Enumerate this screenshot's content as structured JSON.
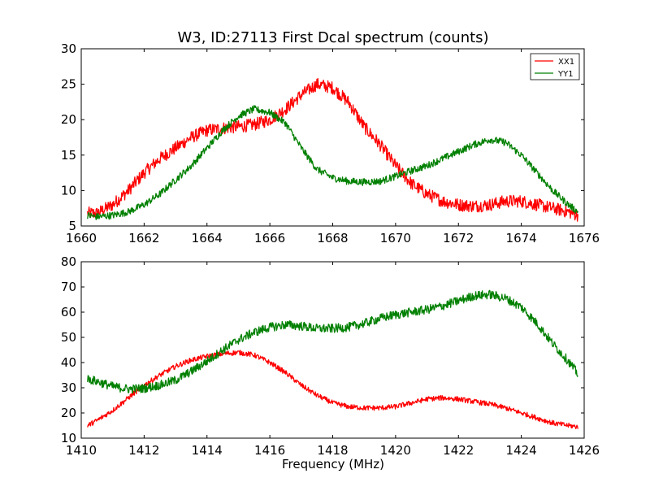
{
  "title": "W3, ID:27113 First Dcal spectrum (counts)",
  "xlabel": "Frequency (MHz)",
  "legend": {
    "placement": "top-right",
    "entries": [
      {
        "label": "XX1",
        "color": "#ff0000"
      },
      {
        "label": "YY1",
        "color": "#008000"
      }
    ]
  },
  "chart_data": [
    {
      "type": "line",
      "title": "W3, ID:27113 First Dcal spectrum (counts)",
      "xlabel": "",
      "ylabel": "",
      "xlim": [
        1660,
        1676
      ],
      "ylim": [
        5,
        30
      ],
      "xticks": [
        1660,
        1662,
        1664,
        1666,
        1668,
        1670,
        1672,
        1674,
        1676
      ],
      "yticks": [
        5,
        10,
        15,
        20,
        25,
        30
      ],
      "legend": "top-right",
      "series": [
        {
          "name": "XX1",
          "color": "#ff0000",
          "noise": 0.9,
          "x": [
            1660.2,
            1660.5,
            1661.0,
            1661.5,
            1662.0,
            1662.5,
            1663.0,
            1663.5,
            1664.0,
            1664.5,
            1665.0,
            1665.5,
            1666.0,
            1666.5,
            1667.0,
            1667.5,
            1668.0,
            1668.5,
            1669.0,
            1669.5,
            1670.0,
            1670.5,
            1671.0,
            1671.5,
            1672.0,
            1672.5,
            1673.0,
            1673.5,
            1674.0,
            1674.5,
            1675.0,
            1675.5,
            1675.8
          ],
          "y": [
            6.8,
            6.8,
            8.0,
            10.0,
            12.5,
            14.5,
            16.0,
            17.5,
            18.5,
            18.8,
            19.0,
            19.3,
            20.0,
            21.5,
            23.5,
            25.0,
            24.5,
            22.5,
            19.0,
            16.5,
            13.5,
            11.0,
            9.5,
            8.5,
            8.0,
            7.8,
            8.0,
            8.5,
            8.5,
            8.0,
            7.5,
            7.0,
            6.5
          ]
        },
        {
          "name": "YY1",
          "color": "#008000",
          "noise": 0.5,
          "x": [
            1660.2,
            1660.5,
            1661.0,
            1661.5,
            1662.0,
            1662.5,
            1663.0,
            1663.5,
            1664.0,
            1664.5,
            1665.0,
            1665.5,
            1666.0,
            1666.5,
            1667.0,
            1667.5,
            1668.0,
            1668.5,
            1669.0,
            1669.5,
            1670.0,
            1670.5,
            1671.0,
            1671.5,
            1672.0,
            1672.5,
            1673.0,
            1673.5,
            1674.0,
            1674.5,
            1675.0,
            1675.5,
            1675.8
          ],
          "y": [
            6.5,
            6.3,
            6.5,
            7.0,
            8.0,
            9.5,
            11.5,
            13.5,
            16.0,
            18.5,
            20.5,
            21.5,
            21.0,
            19.5,
            16.0,
            13.0,
            11.8,
            11.3,
            11.2,
            11.3,
            12.0,
            12.8,
            13.5,
            14.5,
            15.5,
            16.5,
            17.2,
            16.8,
            15.0,
            12.5,
            10.0,
            8.0,
            7.0
          ]
        }
      ]
    },
    {
      "type": "line",
      "title": "",
      "xlabel": "Frequency (MHz)",
      "ylabel": "",
      "xlim": [
        1410,
        1426
      ],
      "ylim": [
        10,
        80
      ],
      "xticks": [
        1410,
        1412,
        1414,
        1416,
        1418,
        1420,
        1422,
        1424,
        1426
      ],
      "yticks": [
        10,
        20,
        30,
        40,
        50,
        60,
        70,
        80
      ],
      "series": [
        {
          "name": "XX1",
          "color": "#ff0000",
          "noise": 1.0,
          "x": [
            1410.2,
            1410.5,
            1411.0,
            1411.5,
            1412.0,
            1412.5,
            1413.0,
            1413.5,
            1414.0,
            1414.5,
            1415.0,
            1415.5,
            1416.0,
            1416.5,
            1417.0,
            1417.5,
            1418.0,
            1418.5,
            1419.0,
            1419.5,
            1420.0,
            1420.5,
            1421.0,
            1421.5,
            1422.0,
            1422.5,
            1423.0,
            1423.5,
            1424.0,
            1424.5,
            1425.0,
            1425.5,
            1425.8
          ],
          "y": [
            15.0,
            17.0,
            21.0,
            26.0,
            31.0,
            35.0,
            38.5,
            41.0,
            42.5,
            43.5,
            44.0,
            43.0,
            40.0,
            36.0,
            31.0,
            27.0,
            24.0,
            22.5,
            22.0,
            22.0,
            22.5,
            24.0,
            25.5,
            26.0,
            25.5,
            24.5,
            23.5,
            22.0,
            20.0,
            18.0,
            16.0,
            15.0,
            14.5
          ]
        },
        {
          "name": "YY1",
          "color": "#008000",
          "noise": 1.8,
          "x": [
            1410.2,
            1410.5,
            1411.0,
            1411.5,
            1412.0,
            1412.5,
            1413.0,
            1413.5,
            1414.0,
            1414.5,
            1415.0,
            1415.5,
            1416.0,
            1416.5,
            1417.0,
            1417.5,
            1418.0,
            1418.5,
            1419.0,
            1419.5,
            1420.0,
            1420.5,
            1421.0,
            1421.5,
            1422.0,
            1422.5,
            1423.0,
            1423.5,
            1424.0,
            1424.5,
            1425.0,
            1425.5,
            1425.8
          ],
          "y": [
            33.5,
            32.5,
            30.5,
            29.5,
            29.8,
            31.0,
            33.0,
            36.5,
            40.5,
            45.0,
            49.0,
            52.0,
            54.0,
            55.0,
            54.5,
            53.5,
            53.5,
            54.0,
            55.5,
            57.5,
            59.0,
            60.0,
            61.0,
            62.5,
            64.5,
            66.5,
            67.0,
            65.5,
            62.0,
            55.5,
            47.5,
            40.5,
            35.5
          ]
        }
      ]
    }
  ]
}
